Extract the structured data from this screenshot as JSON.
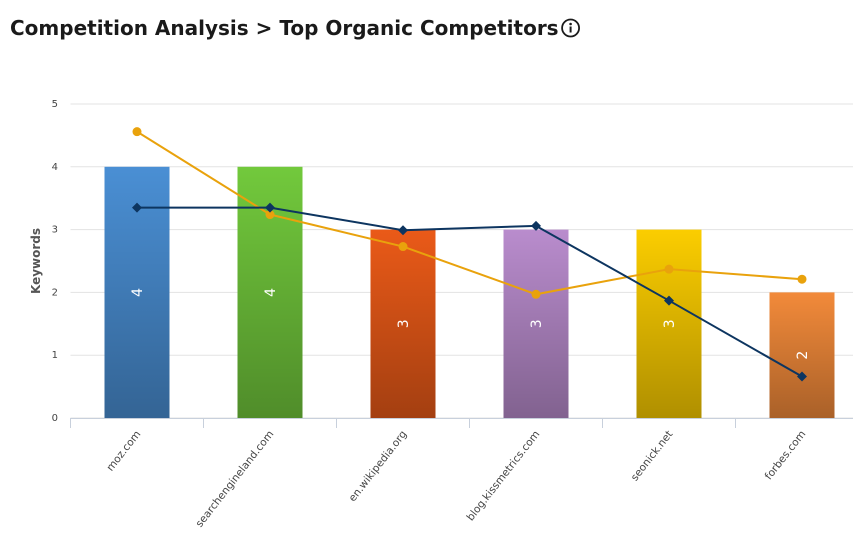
{
  "chart_data": {
    "type": "bar",
    "title": "Competition Analysis > Top Organic Competitors",
    "y_label": "Keywords",
    "categories": [
      "moz.com",
      "searchengineland.com",
      "en.wikipedia.org",
      "blog.kissmetrics.com",
      "seonick.net",
      "forbes.com"
    ],
    "values": [
      4,
      4,
      3,
      3,
      3,
      2
    ],
    "colors": [
      "#4a8fd4",
      "#72c93c",
      "#ea5a18",
      "#b98ccd",
      "#fbcd00",
      "#f28a3a"
    ],
    "lines": [
      {
        "color": "#e9a20c",
        "marker": "circle",
        "values": [
          4.56,
          3.24,
          2.73,
          1.97,
          2.37,
          2.21
        ]
      },
      {
        "color": "#0d3560",
        "marker": "diamond",
        "values": [
          3.35,
          3.35,
          2.99,
          3.06,
          1.87,
          0.66
        ]
      }
    ],
    "ylim": [
      0,
      5
    ],
    "yticks": [
      0,
      1,
      2,
      3,
      4,
      5
    ],
    "grid": true
  }
}
